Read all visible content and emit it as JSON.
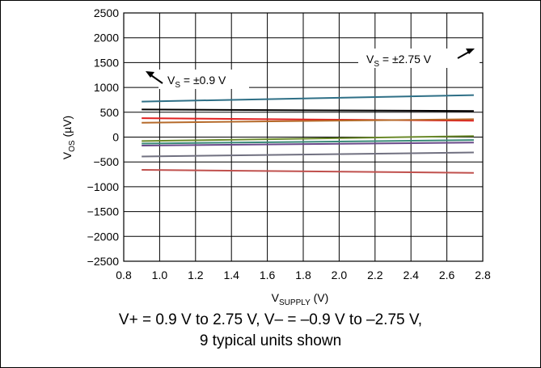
{
  "chart_data": {
    "type": "line",
    "xlabel": {
      "main": "V",
      "sub": "SUPPLY",
      "unit": " (V)"
    },
    "ylabel": {
      "main": "V",
      "sub": "OS",
      "unit": " (µV)"
    },
    "xlim": [
      0.9,
      2.75
    ],
    "xaxis_range": [
      0.8,
      2.8
    ],
    "ylim": [
      -2500,
      2500
    ],
    "xticks": [
      "0.8",
      "1.0",
      "1.2",
      "1.4",
      "1.6",
      "1.8",
      "2.0",
      "2.2",
      "2.4",
      "2.6",
      "2.8"
    ],
    "yticks": [
      "2500",
      "2000",
      "1500",
      "1000",
      "500",
      "0",
      "−500",
      "−1000",
      "−1500",
      "−2000",
      "−2500"
    ],
    "grid": true,
    "series": [
      {
        "color": "#2e6f86",
        "x": [
          0.9,
          2.75
        ],
        "y": [
          715,
          845
        ]
      },
      {
        "color": "#000000",
        "x": [
          0.9,
          2.75
        ],
        "y": [
          555,
          525
        ]
      },
      {
        "color": "#e02020",
        "x": [
          0.9,
          2.75
        ],
        "y": [
          380,
          330
        ]
      },
      {
        "color": "#b56a2a",
        "x": [
          0.9,
          2.75
        ],
        "y": [
          290,
          360
        ]
      },
      {
        "color": "#6b8a2a",
        "x": [
          0.9,
          2.75
        ],
        "y": [
          -80,
          20
        ]
      },
      {
        "color": "#3a8a78",
        "x": [
          0.9,
          2.75
        ],
        "y": [
          -130,
          -60
        ]
      },
      {
        "color": "#6a4a8a",
        "x": [
          0.9,
          2.75
        ],
        "y": [
          -170,
          -110
        ]
      },
      {
        "color": "#707080",
        "x": [
          0.9,
          2.75
        ],
        "y": [
          -390,
          -310
        ]
      },
      {
        "color": "#c0504d",
        "x": [
          0.9,
          2.75
        ],
        "y": [
          -660,
          -720
        ]
      }
    ],
    "annotations": [
      {
        "main": "V",
        "sub": "S",
        "rest": " = ±0.9 V",
        "arrow": "up-left"
      },
      {
        "main": "V",
        "sub": "S",
        "rest": " = ±2.75 V",
        "arrow": "up-right"
      }
    ]
  },
  "caption": {
    "line1": "V+ = 0.9 V to 2.75 V, V– = –0.9 V to –2.75 V,",
    "line2": "9 typical units shown"
  }
}
